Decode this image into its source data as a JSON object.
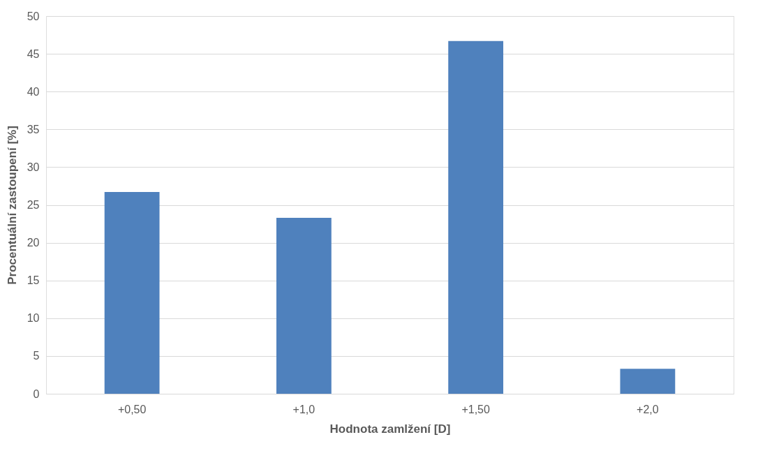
{
  "chart_data": {
    "type": "bar",
    "xlabel": "Hodnota zamlžení [D]",
    "ylabel": "Procentuální zastoupení [%]",
    "categories": [
      "+0,50",
      "+1,0",
      "+1,50",
      "+2,0"
    ],
    "values": [
      26.7,
      23.3,
      46.7,
      3.3
    ],
    "color": "#4f81bd",
    "ylim": [
      0,
      50
    ],
    "yticks": [
      0,
      5,
      10,
      15,
      20,
      25,
      30,
      35,
      40,
      45,
      50
    ],
    "grid": "y"
  }
}
